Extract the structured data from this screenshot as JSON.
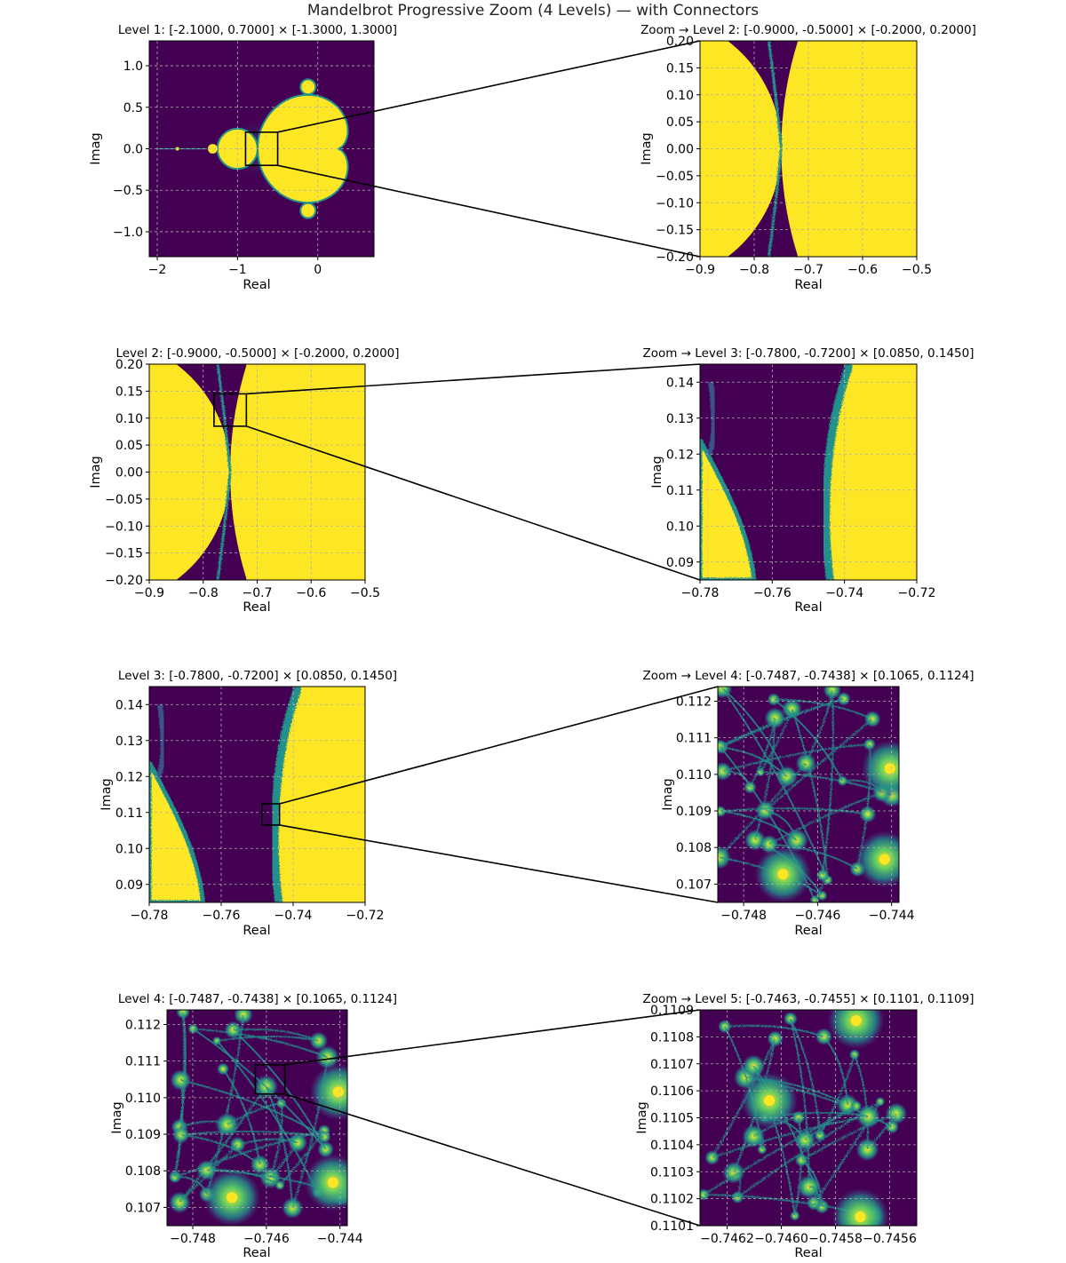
{
  "figure": {
    "title": "Mandelbrot Progressive Zoom (4 Levels) — with Connectors"
  },
  "colors": {
    "interior": "#fde725",
    "exterior_dark": "#440154",
    "exterior_mid": "#3b528b",
    "filament": "#21918c",
    "bright": "#5ec962",
    "grid": "#b0b0b0",
    "rect": "#000000"
  },
  "chart_data": [
    {
      "type": "heatmap",
      "id": "L1",
      "title": "Level 1: [-2.1000, 0.7000] × [-1.3000, 1.3000]",
      "xlabel": "Real",
      "ylabel": "Imag",
      "xlim": [
        -2.1,
        0.7
      ],
      "ylim": [
        -1.3,
        1.3
      ],
      "xticks": [
        -2,
        -1,
        0
      ],
      "xticklabels": [
        "−2",
        "−1",
        "0"
      ],
      "yticks": [
        1.0,
        0.5,
        0.0,
        -0.5,
        -1.0
      ],
      "yticklabels": [
        "1.0",
        "0.5",
        "0.0",
        "−0.5",
        "−1.0"
      ],
      "zoom_rect": {
        "x": [
          -0.9,
          -0.5
        ],
        "y": [
          -0.2,
          0.2
        ]
      }
    },
    {
      "type": "heatmap",
      "id": "Z2",
      "title": "Zoom → Level 2: [-0.9000, -0.5000] × [-0.2000, 0.2000]",
      "xlabel": "Real",
      "ylabel": "Imag",
      "xlim": [
        -0.9,
        -0.5
      ],
      "ylim": [
        -0.2,
        0.2
      ],
      "xticks": [
        -0.9,
        -0.8,
        -0.7,
        -0.6,
        -0.5
      ],
      "xticklabels": [
        "−0.9",
        "−0.8",
        "−0.7",
        "−0.6",
        "−0.5"
      ],
      "yticks": [
        0.2,
        0.15,
        0.1,
        0.05,
        0.0,
        -0.05,
        -0.1,
        -0.15,
        -0.2
      ],
      "yticklabels": [
        "0.20",
        "0.15",
        "0.10",
        "0.05",
        "0.00",
        "−0.05",
        "−0.10",
        "−0.15",
        "−0.20"
      ]
    },
    {
      "type": "heatmap",
      "id": "L2",
      "title": "Level 2: [-0.9000, -0.5000] × [-0.2000, 0.2000]",
      "xlabel": "Real",
      "ylabel": "Imag",
      "xlim": [
        -0.9,
        -0.5
      ],
      "ylim": [
        -0.2,
        0.2
      ],
      "xticks": [
        -0.9,
        -0.8,
        -0.7,
        -0.6,
        -0.5
      ],
      "xticklabels": [
        "−0.9",
        "−0.8",
        "−0.7",
        "−0.6",
        "−0.5"
      ],
      "yticks": [
        0.2,
        0.15,
        0.1,
        0.05,
        0.0,
        -0.05,
        -0.1,
        -0.15,
        -0.2
      ],
      "yticklabels": [
        "0.20",
        "0.15",
        "0.10",
        "0.05",
        "0.00",
        "−0.05",
        "−0.10",
        "−0.15",
        "−0.20"
      ],
      "zoom_rect": {
        "x": [
          -0.78,
          -0.72
        ],
        "y": [
          0.085,
          0.145
        ]
      }
    },
    {
      "type": "heatmap",
      "id": "Z3",
      "title": "Zoom → Level 3: [-0.7800, -0.7200] × [0.0850, 0.1450]",
      "xlabel": "Real",
      "ylabel": "Imag",
      "xlim": [
        -0.78,
        -0.72
      ],
      "ylim": [
        0.085,
        0.145
      ],
      "xticks": [
        -0.78,
        -0.76,
        -0.74,
        -0.72
      ],
      "xticklabels": [
        "−0.78",
        "−0.76",
        "−0.74",
        "−0.72"
      ],
      "yticks": [
        0.14,
        0.13,
        0.12,
        0.11,
        0.1,
        0.09
      ],
      "yticklabels": [
        "0.14",
        "0.13",
        "0.12",
        "0.11",
        "0.10",
        "0.09"
      ]
    },
    {
      "type": "heatmap",
      "id": "L3",
      "title": "Level 3: [-0.7800, -0.7200] × [0.0850, 0.1450]",
      "xlabel": "Real",
      "ylabel": "Imag",
      "xlim": [
        -0.78,
        -0.72
      ],
      "ylim": [
        0.085,
        0.145
      ],
      "xticks": [
        -0.78,
        -0.76,
        -0.74,
        -0.72
      ],
      "xticklabels": [
        "−0.78",
        "−0.76",
        "−0.74",
        "−0.72"
      ],
      "yticks": [
        0.14,
        0.13,
        0.12,
        0.11,
        0.1,
        0.09
      ],
      "yticklabels": [
        "0.14",
        "0.13",
        "0.12",
        "0.11",
        "0.10",
        "0.09"
      ],
      "zoom_rect": {
        "x": [
          -0.7487,
          -0.7438
        ],
        "y": [
          0.1065,
          0.1124
        ]
      }
    },
    {
      "type": "heatmap",
      "id": "Z4",
      "title": "Zoom → Level 4: [-0.7487, -0.7438] × [0.1065, 0.1124]",
      "xlabel": "Real",
      "ylabel": "Imag",
      "xlim": [
        -0.7487,
        -0.7438
      ],
      "ylim": [
        0.1065,
        0.1124
      ],
      "xticks": [
        -0.748,
        -0.746,
        -0.744
      ],
      "xticklabels": [
        "−0.748",
        "−0.746",
        "−0.744"
      ],
      "yticks": [
        0.112,
        0.111,
        0.11,
        0.109,
        0.108,
        0.107
      ],
      "yticklabels": [
        "0.112",
        "0.111",
        "0.110",
        "0.109",
        "0.108",
        "0.107"
      ]
    },
    {
      "type": "heatmap",
      "id": "L4",
      "title": "Level 4: [-0.7487, -0.7438] × [0.1065, 0.1124]",
      "xlabel": "Real",
      "ylabel": "Imag",
      "xlim": [
        -0.7487,
        -0.7438
      ],
      "ylim": [
        0.1065,
        0.1124
      ],
      "xticks": [
        -0.748,
        -0.746,
        -0.744
      ],
      "xticklabels": [
        "−0.748",
        "−0.746",
        "−0.744"
      ],
      "yticks": [
        0.112,
        0.111,
        0.11,
        0.109,
        0.108,
        0.107
      ],
      "yticklabels": [
        "0.112",
        "0.111",
        "0.110",
        "0.109",
        "0.108",
        "0.107"
      ],
      "zoom_rect": {
        "x": [
          -0.7463,
          -0.7455
        ],
        "y": [
          0.1101,
          0.1109
        ]
      }
    },
    {
      "type": "heatmap",
      "id": "Z5",
      "title": "Zoom → Level 5: [-0.7463, -0.7455] × [0.1101, 0.1109]",
      "xlabel": "Real",
      "ylabel": "Imag",
      "xlim": [
        -0.7463,
        -0.7455
      ],
      "ylim": [
        0.1101,
        0.1109
      ],
      "xticks": [
        -0.7462,
        -0.746,
        -0.7458,
        -0.7456
      ],
      "xticklabels": [
        "−0.7462",
        "−0.7460",
        "−0.7458",
        "−0.7456"
      ],
      "yticks": [
        0.1109,
        0.1108,
        0.1107,
        0.1106,
        0.1105,
        0.1104,
        0.1103,
        0.1102,
        0.1101
      ],
      "yticklabels": [
        "0.1109",
        "0.1108",
        "0.1107",
        "0.1106",
        "0.1105",
        "0.1104",
        "0.1103",
        "0.1102",
        "0.1101"
      ]
    }
  ]
}
